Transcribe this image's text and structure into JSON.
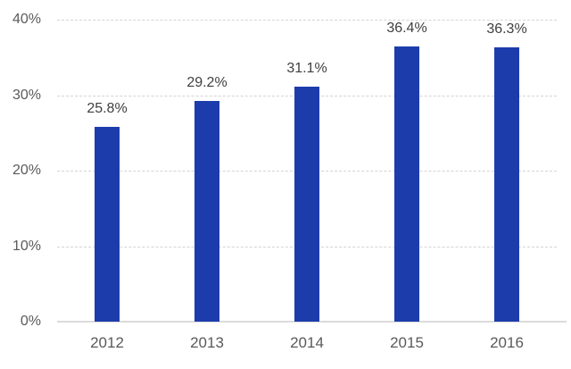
{
  "chart_data": {
    "type": "bar",
    "title": "",
    "xlabel": "",
    "ylabel": "",
    "categories": [
      "2012",
      "2013",
      "2014",
      "2015",
      "2016"
    ],
    "values": [
      25.8,
      29.2,
      31.1,
      36.4,
      36.3
    ],
    "value_labels": [
      "25.8%",
      "29.2%",
      "31.1%",
      "36.4%",
      "36.3%"
    ],
    "ylim": [
      0,
      40
    ],
    "yticks": [
      {
        "value": 0,
        "label": "0%"
      },
      {
        "value": 10,
        "label": "10%"
      },
      {
        "value": 20,
        "label": "20%"
      },
      {
        "value": 30,
        "label": "30%"
      },
      {
        "value": 40,
        "label": "40%"
      }
    ],
    "grid": "horizontal dashed gridlines at 10% steps, solid baseline at 0%",
    "legend": "none",
    "colors": {
      "bar": "#1D3CAC",
      "gridline": "#D4D4D4",
      "baseline": "#DBDBDB",
      "tick_text": "#5A5A5A",
      "value_text": "#3F3F3F",
      "background": "#FFFFFF"
    }
  }
}
